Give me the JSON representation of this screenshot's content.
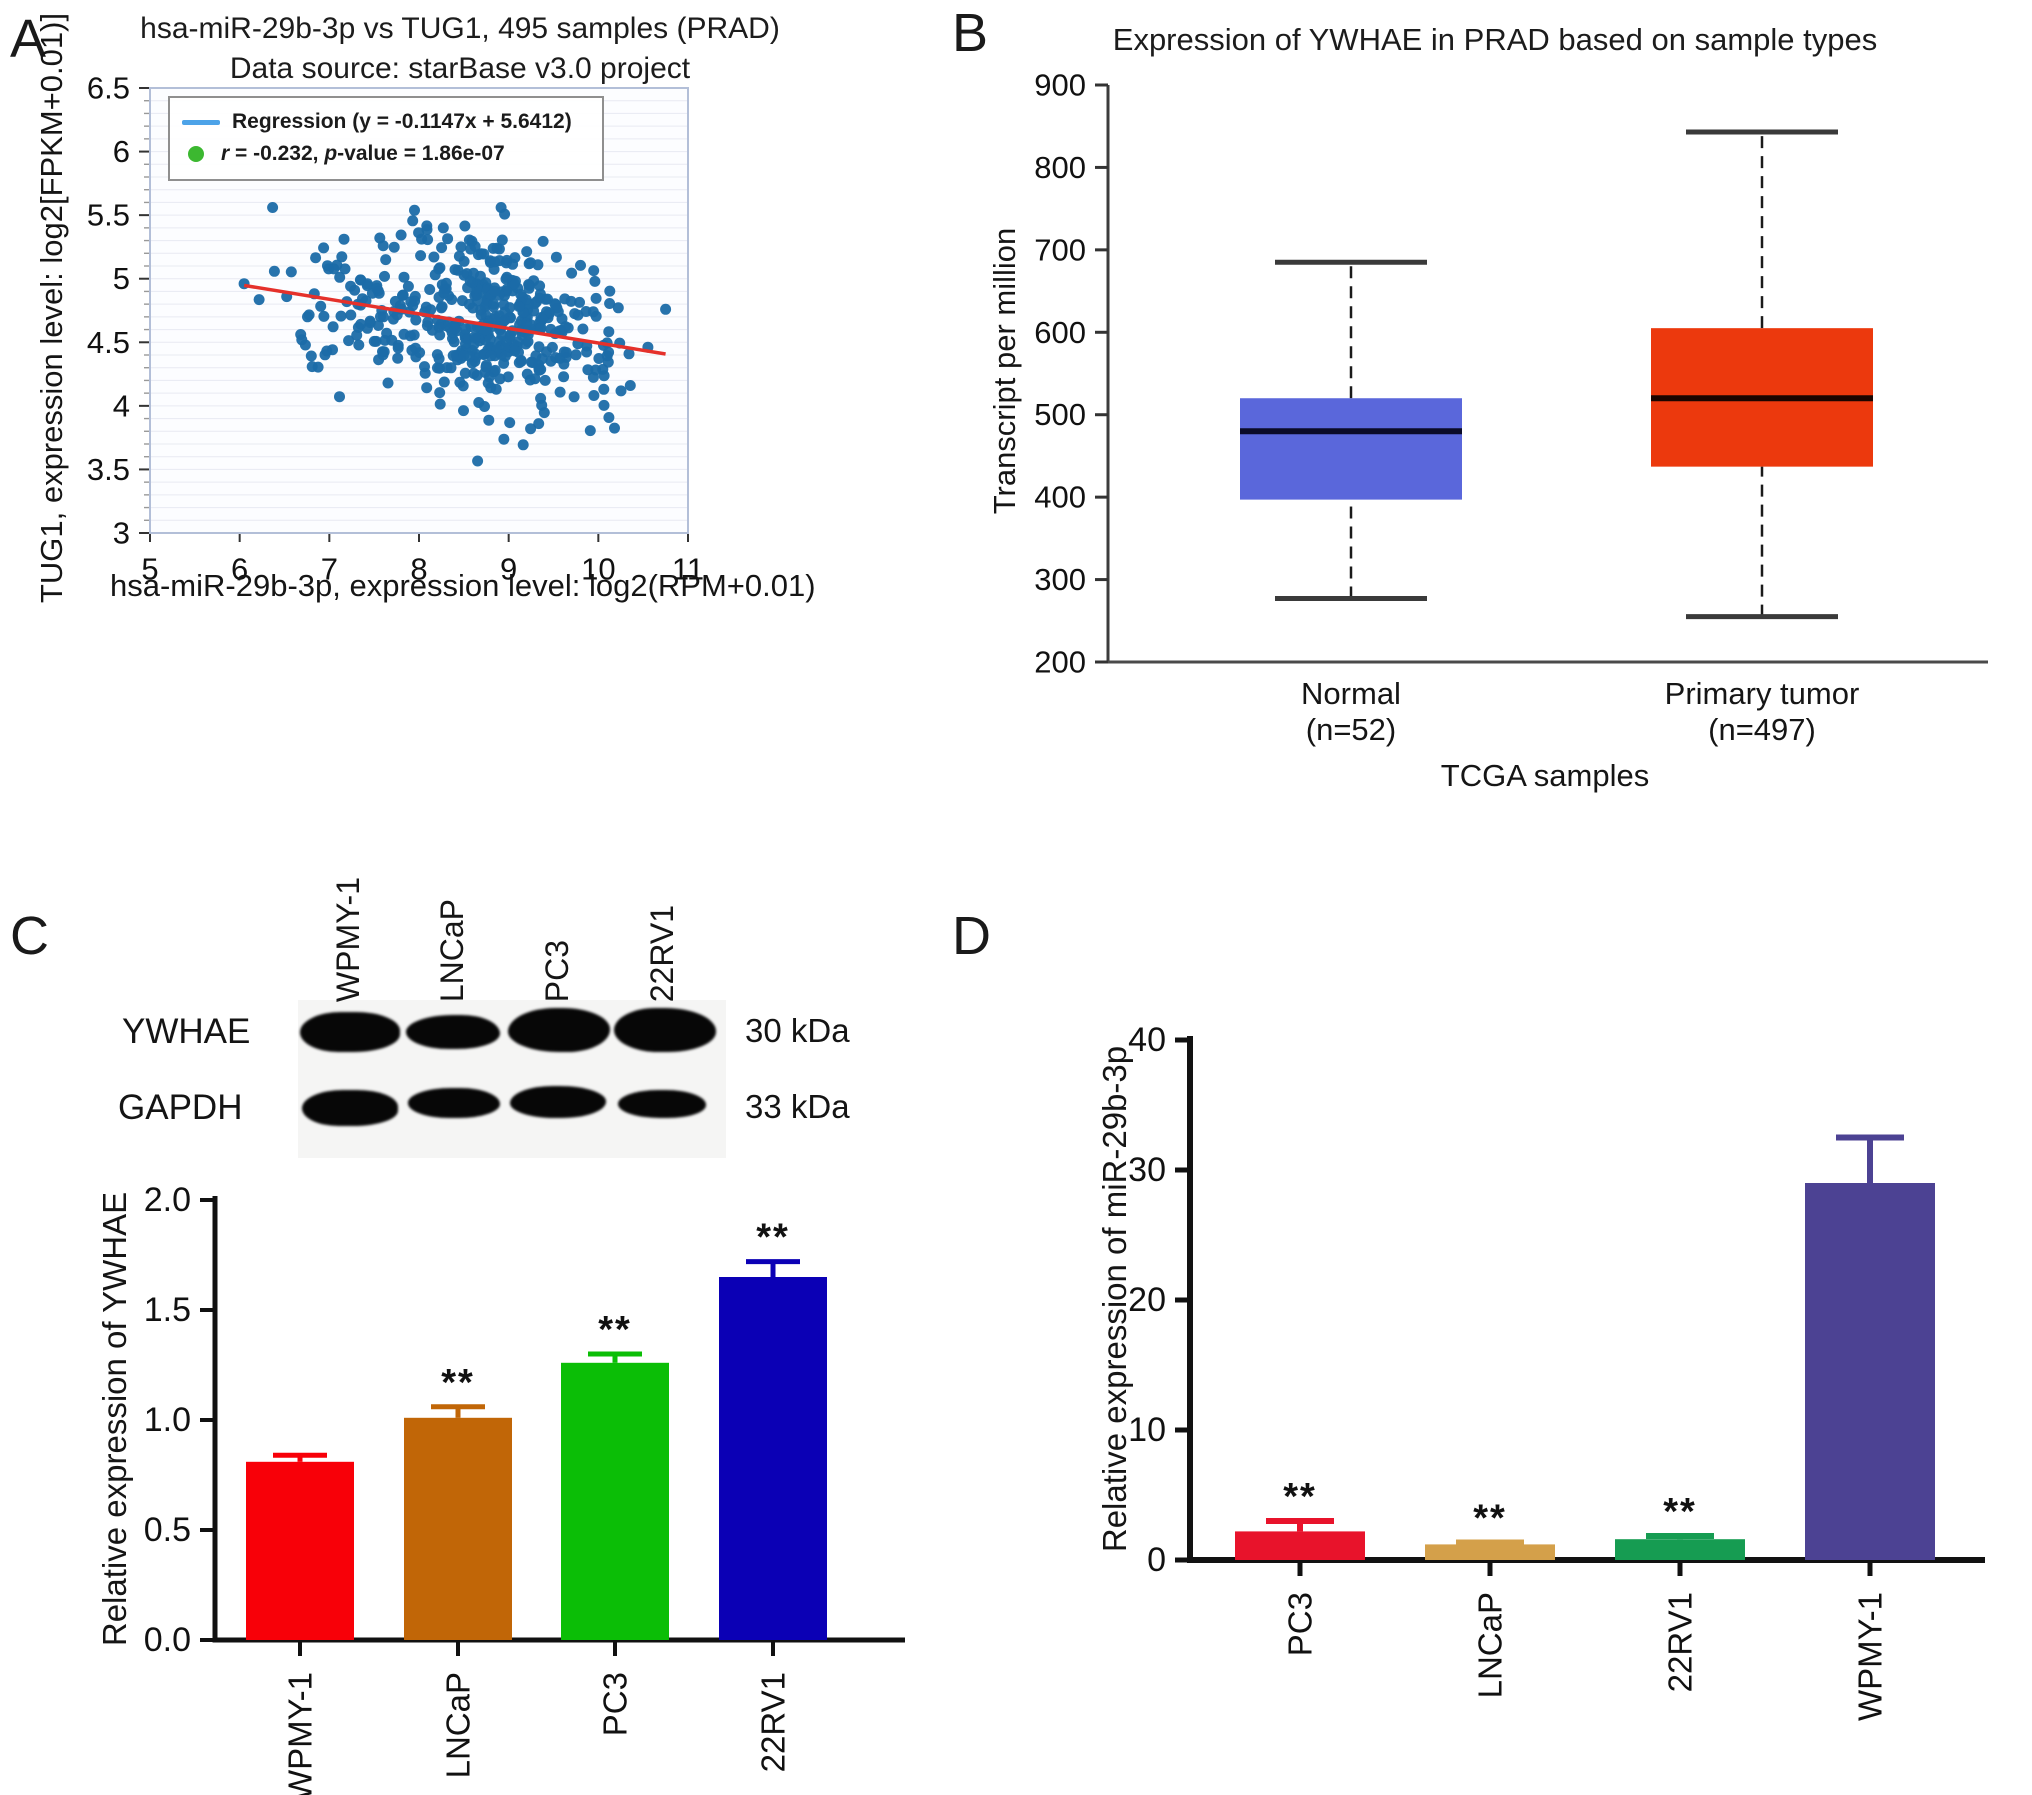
{
  "letters": {
    "A": "A",
    "B": "B",
    "C": "C",
    "D": "D"
  },
  "blot": {
    "lanes": [
      "WPMY-1",
      "LNCaP",
      "PC3",
      "22RV1"
    ],
    "rows": [
      {
        "label": "YWHAE",
        "size": "30 kDa"
      },
      {
        "label": "GAPDH",
        "size": "33 kDa"
      }
    ]
  },
  "chart_data": [
    {
      "panel": "A",
      "type": "scatter",
      "title_line1": "hsa-miR-29b-3p vs TUG1, 495 samples (PRAD)",
      "title_line2": "Data source: starBase v3.0 project",
      "xlabel": "hsa-miR-29b-3p, expression level: log2(RPM+0.01)",
      "ylabel": "TUG1, expression level: log2[FPKM+0.01)]",
      "xlim": [
        5,
        11
      ],
      "ylim": [
        3,
        6.5
      ],
      "xticks": [
        5,
        6,
        7,
        8,
        9,
        10,
        11
      ],
      "yticks": [
        3,
        3.5,
        4,
        4.5,
        5,
        5.5,
        6,
        6.5
      ],
      "grid_step": 0.1,
      "n_points": 495,
      "point_color": "#1b6ca8",
      "regression": {
        "slope": -0.1147,
        "intercept": 5.6412,
        "x_start": 6.05,
        "x_end": 10.75,
        "color": "#e5312b"
      },
      "legend": {
        "line_label": "Regression (y = -0.1147x + 5.6412)",
        "stat_r": "r",
        "stat_mid": " = -0.232, ",
        "stat_p": "p",
        "stat_end": "-value = 1.86e-07",
        "line_color": "#4da3e8",
        "dot_color": "#3cb830"
      },
      "cloud": {
        "seed": 42,
        "clusters": [
          {
            "weight": 0.62,
            "mx": 9.02,
            "sx": 0.55
          },
          {
            "weight": 0.38,
            "mx": 7.95,
            "sx": 0.85
          }
        ],
        "y_sd": 0.33,
        "x_clip": [
          6.05,
          10.75
        ],
        "y_clip": [
          3.42,
          5.56
        ]
      }
    },
    {
      "panel": "B",
      "type": "box",
      "title": "Expression of YWHAE in PRAD based on sample types",
      "ylabel": "Transcript per million",
      "xlabel": "TCGA samples",
      "ylim": [
        200,
        900
      ],
      "yticks": [
        900,
        800,
        700,
        600,
        500,
        400,
        300,
        200
      ],
      "groups": [
        {
          "label_line1": "Normal",
          "label_line2": "(n=52)",
          "color": "#5a67db",
          "median_color": "#0b0b28",
          "min": 277,
          "q1": 397,
          "median": 480,
          "q3": 520,
          "max": 685
        },
        {
          "label_line1": "Primary tumor",
          "label_line2": "(n=497)",
          "color": "#ec390d",
          "median_color": "#1a0500",
          "min": 255,
          "q1": 437,
          "median": 520,
          "q3": 605,
          "max": 843
        }
      ]
    },
    {
      "panel": "C",
      "type": "bar",
      "ylabel": "Relative expression of YWHAE",
      "ylim": [
        0,
        2
      ],
      "yticks": [
        "0.0",
        "0.5",
        "1.0",
        "1.5",
        "2.0"
      ],
      "categories": [
        "WPMY-1",
        "LNCaP",
        "PC3",
        "22RV1"
      ],
      "values": [
        0.81,
        1.01,
        1.26,
        1.65
      ],
      "errors": [
        0.03,
        0.05,
        0.04,
        0.07
      ],
      "colors": [
        "#f80008",
        "#c16607",
        "#0bbe06",
        "#0b00b5"
      ],
      "significance": [
        "",
        "**",
        "**",
        "**"
      ]
    },
    {
      "panel": "D",
      "type": "bar",
      "ylabel": "Relative expression of miR-29b-3p",
      "ylim": [
        0,
        40
      ],
      "yticks": [
        "0",
        "10",
        "20",
        "30",
        "40"
      ],
      "categories": [
        "PC3",
        "LNCaP",
        "22RV1",
        "WPMY-1"
      ],
      "values": [
        2.2,
        1.2,
        1.6,
        29
      ],
      "errors": [
        0.8,
        0.15,
        0.25,
        3.5
      ],
      "colors": [
        "#e8132b",
        "#d4a04a",
        "#169c52",
        "#4c4293"
      ],
      "significance": [
        "**",
        "**",
        "**",
        ""
      ]
    }
  ]
}
